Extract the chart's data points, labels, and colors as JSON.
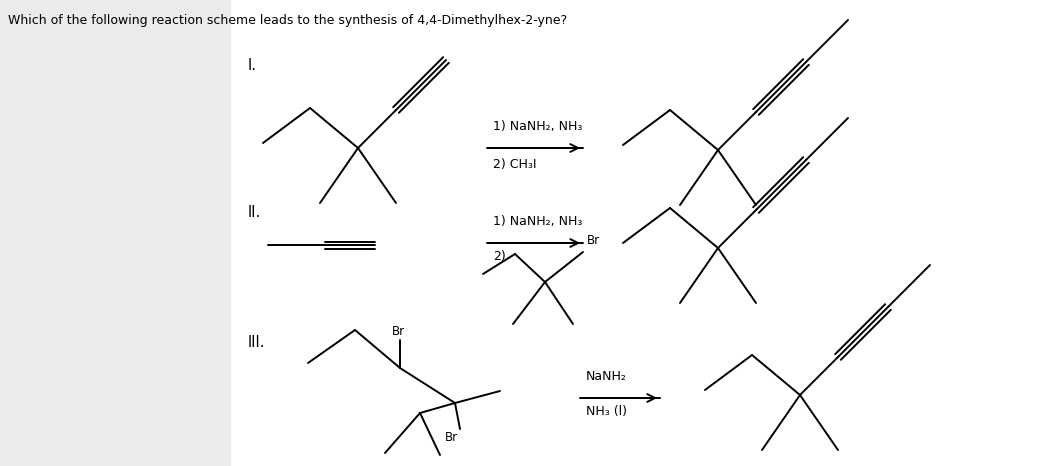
{
  "title": "Which of the following reaction scheme leads to the synthesis of 4,4-Dimethylhex-2-yne?",
  "title_fontsize": 9.0,
  "background_color": "#ffffff",
  "left_panel_color": "#ebebeb",
  "text_color": "#000000",
  "fig_width": 10.47,
  "fig_height": 4.66,
  "label_I": "I.",
  "label_II": "II.",
  "label_III": "III.",
  "cond_I_1": "1) NaNH₂, NH₃",
  "cond_I_2": "2) CH₃I",
  "cond_II_1": "1) NaNH₂, NH₃",
  "cond_II_2": "2)",
  "cond_III_1": "NaNH₂",
  "cond_III_2": "NH₃ (l)",
  "Br": "Br"
}
